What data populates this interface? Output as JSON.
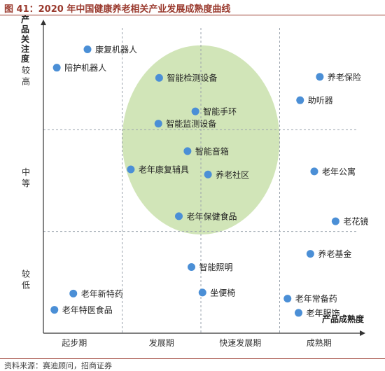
{
  "header": {
    "title": "图 41：2020 年中国健康养老相关产业发展成熟度曲线"
  },
  "footer": {
    "source": "资料来源：赛迪顾问，招商证券"
  },
  "colors": {
    "point": "#4b8fd6",
    "bubble": "#c9e0ab",
    "title": "#9a3a2e",
    "axis": "#333333",
    "grid": "#9aa3ad"
  },
  "chart_data": {
    "type": "scatter",
    "xlabel": "产品成熟度",
    "ylabel": "产品关注度",
    "x_categories": [
      "起步期",
      "发展期",
      "快速发展期",
      "成熟期"
    ],
    "y_categories": [
      "较高",
      "中等",
      "较低"
    ],
    "xlim": [
      0,
      4
    ],
    "ylim": [
      0,
      3
    ],
    "grid": "dashed",
    "highlight_region": {
      "shape": "ellipse",
      "cx": 2.0,
      "cy": 1.9,
      "rx": 1.0,
      "ry": 0.93
    },
    "points": [
      {
        "label": "康复机器人",
        "x": 0.56,
        "y": 2.79
      },
      {
        "label": "陪护机器人",
        "x": 0.17,
        "y": 2.61
      },
      {
        "label": "智能检测设备",
        "x": 1.47,
        "y": 2.51
      },
      {
        "label": "养老保险",
        "x": 3.51,
        "y": 2.52
      },
      {
        "label": "助听器",
        "x": 3.26,
        "y": 2.29
      },
      {
        "label": "智能手环",
        "x": 1.93,
        "y": 2.18
      },
      {
        "label": "智能监测设备",
        "x": 1.46,
        "y": 2.06
      },
      {
        "label": "智能音箱",
        "x": 1.83,
        "y": 1.79
      },
      {
        "label": "老年康复辅具",
        "x": 1.11,
        "y": 1.61
      },
      {
        "label": "养老社区",
        "x": 2.09,
        "y": 1.56
      },
      {
        "label": "老年公寓",
        "x": 3.44,
        "y": 1.59
      },
      {
        "label": "老年保健食品",
        "x": 1.72,
        "y": 1.15
      },
      {
        "label": "老花镜",
        "x": 3.71,
        "y": 1.1
      },
      {
        "label": "养老基金",
        "x": 3.39,
        "y": 0.78
      },
      {
        "label": "智能照明",
        "x": 1.88,
        "y": 0.65
      },
      {
        "label": "老年新特药",
        "x": 0.38,
        "y": 0.39
      },
      {
        "label": "坐便椅",
        "x": 2.02,
        "y": 0.4
      },
      {
        "label": "老年常备药",
        "x": 3.1,
        "y": 0.34
      },
      {
        "label": "老年特医食品",
        "x": 0.14,
        "y": 0.23
      },
      {
        "label": "老年服饰",
        "x": 3.24,
        "y": 0.2
      }
    ]
  }
}
